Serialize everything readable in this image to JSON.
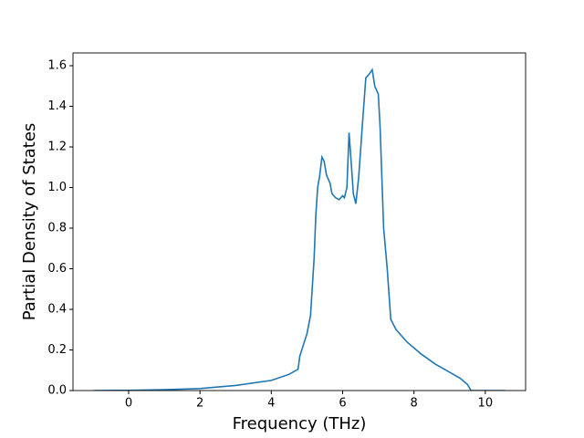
{
  "chart_data": {
    "type": "line",
    "xlabel": "Frequency (THz)",
    "ylabel": "Partial Density of States",
    "x": [
      -0.98,
      0,
      1,
      2,
      3,
      4,
      4.5,
      4.75,
      4.8,
      5.0,
      5.1,
      5.2,
      5.25,
      5.3,
      5.35,
      5.42,
      5.48,
      5.55,
      5.65,
      5.7,
      5.8,
      5.9,
      6.0,
      6.05,
      6.12,
      6.18,
      6.25,
      6.3,
      6.37,
      6.45,
      6.55,
      6.65,
      6.75,
      6.83,
      6.9,
      7.0,
      7.05,
      7.15,
      7.25,
      7.35,
      7.5,
      7.8,
      8.2,
      8.6,
      9.0,
      9.3,
      9.5,
      9.6,
      10.0,
      10.55
    ],
    "series": [
      {
        "color": "#1f77b4",
        "values": [
          0,
          0.001,
          0.004,
          0.01,
          0.025,
          0.05,
          0.08,
          0.105,
          0.17,
          0.28,
          0.37,
          0.65,
          0.87,
          1.0,
          1.05,
          1.15,
          1.13,
          1.06,
          1.02,
          0.97,
          0.95,
          0.94,
          0.96,
          0.95,
          1.0,
          1.27,
          1.1,
          0.97,
          0.92,
          1.05,
          1.3,
          1.54,
          1.56,
          1.58,
          1.5,
          1.46,
          1.3,
          0.8,
          0.6,
          0.35,
          0.3,
          0.24,
          0.18,
          0.13,
          0.09,
          0.06,
          0.03,
          0.0,
          0,
          0
        ]
      }
    ],
    "xlim": [
      -1.56,
      11.13
    ],
    "ylim": [
      0,
      1.663
    ],
    "xticks": [
      0,
      2,
      4,
      6,
      8,
      10
    ],
    "yticks": [
      {
        "value": 0,
        "label": "0.0"
      },
      0.2,
      0.4,
      0.6,
      0.8,
      {
        "value": 1,
        "label": "1.0"
      },
      1.2,
      1.4,
      1.6
    ]
  }
}
